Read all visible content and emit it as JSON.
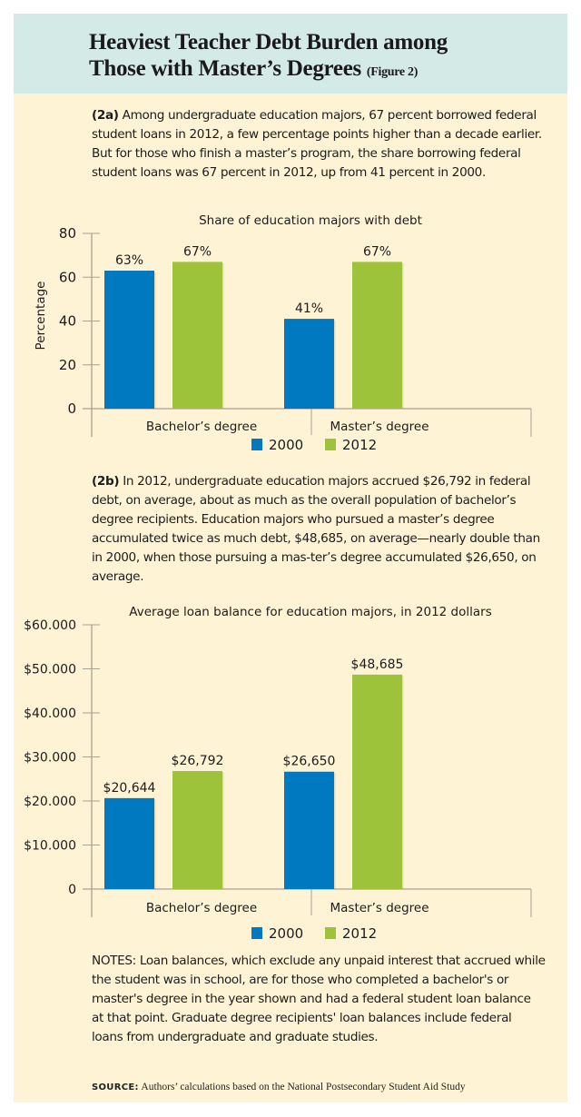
{
  "header": {
    "title_line1": "Heaviest Teacher Debt Burden among",
    "title_line2": "Those with Master’s Degrees",
    "figure_label": "(Figure 2)"
  },
  "section_a": {
    "label": "(2a)",
    "text": "Among undergraduate education majors, 67 percent borrowed federal student loans in 2012, a few percentage points higher than a decade earlier. But for those who finish a master’s program, the share borrowing federal student loans was 67 percent in 2012, up from 41 percent in 2000."
  },
  "section_b": {
    "label": "(2b)",
    "text": "In 2012, undergraduate education majors accrued $26,792 in federal debt, on average, about as much as the overall population of bachelor’s degree recipients. Education majors who pursued a master’s degree accumulated twice as much debt, $48,685, on average—nearly double than in 2000, when those pursuing a mas-ter’s degree accumulated $26,650, on average."
  },
  "notes": "NOTES: Loan balances, which exclude any unpaid interest that accrued while the student was in school, are for those who completed a bachelor's or master's degree in the year shown and had a federal student loan balance at that point. Graduate degree recipients' loan balances include federal loans from undergraduate and graduate studies.",
  "source": {
    "label": "SOURCE:",
    "text": "Authors’ calculations based on the National Postsecondary Student Aid Study"
  },
  "colors": {
    "series_2000": "#0079C0",
    "series_2012": "#9DC33A",
    "axis": "#A8A294",
    "panel_bg": "#FEF3D4",
    "header_bg": "#D4EAE7"
  },
  "chart_data": [
    {
      "type": "bar",
      "title": "Share of education majors with debt",
      "xlabel": "",
      "ylabel": "Percentage",
      "ylim": [
        0,
        80
      ],
      "yticks": [
        0,
        20,
        40,
        60,
        80
      ],
      "ytick_labels": [
        "0",
        "20",
        "40",
        "60",
        "80"
      ],
      "categories": [
        "Bachelor’s degree",
        "Master’s degree"
      ],
      "series": [
        {
          "name": "2000",
          "values": [
            63,
            41
          ],
          "labels": [
            "63%",
            "41%"
          ]
        },
        {
          "name": "2012",
          "values": [
            67,
            67
          ],
          "labels": [
            "67%",
            "67%"
          ]
        }
      ],
      "legend": "bottom-center",
      "grid": false
    },
    {
      "type": "bar",
      "title": "Average loan balance for education majors, in 2012 dollars",
      "xlabel": "",
      "ylabel": "",
      "ylim": [
        0,
        60000
      ],
      "yticks": [
        0,
        10000,
        20000,
        30000,
        40000,
        50000,
        60000
      ],
      "ytick_labels": [
        "0",
        "$10.000",
        "$20.000",
        "$30.000",
        "$40.000",
        "$50.000",
        "$60.000"
      ],
      "categories": [
        "Bachelor’s degree",
        "Master’s degree"
      ],
      "series": [
        {
          "name": "2000",
          "values": [
            20644,
            26650
          ],
          "labels": [
            "$20,644",
            "$26,650"
          ]
        },
        {
          "name": "2012",
          "values": [
            26792,
            48685
          ],
          "labels": [
            "$26,792",
            "$48,685"
          ]
        }
      ],
      "legend": "bottom-center",
      "grid": false
    }
  ]
}
